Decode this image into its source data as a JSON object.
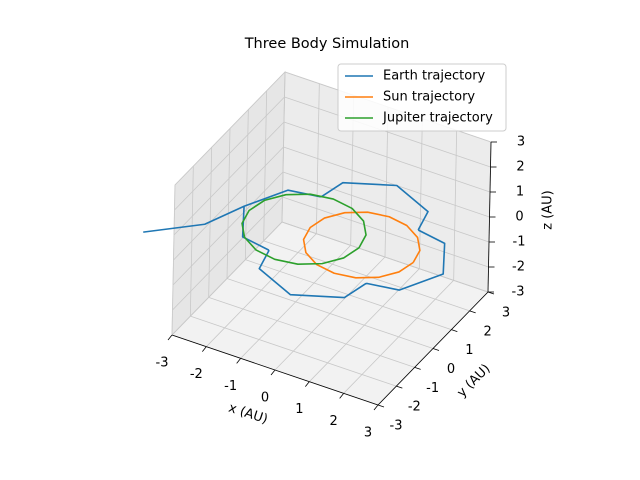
{
  "chart_data": {
    "type": "line3d",
    "title": "Three Body Simulation",
    "xlabel": "x (AU)",
    "ylabel": "y (AU)",
    "zlabel": "z (AU)",
    "xlim": [
      -3,
      3
    ],
    "ylim": [
      -3,
      3
    ],
    "zlim": [
      -3,
      3
    ],
    "xticks": [
      -3,
      -2,
      -1,
      0,
      1,
      2,
      3
    ],
    "yticks": [
      -3,
      -2,
      -1,
      0,
      1,
      2,
      3
    ],
    "zticks": [
      -3,
      -2,
      -1,
      0,
      1,
      2,
      3
    ],
    "grid": true,
    "legend": "upper right",
    "series": [
      {
        "name": "Earth trajectory",
        "color": "#1f77b4",
        "x": [
          -4.1,
          -3.0,
          -2.6,
          -1.98,
          -1.14,
          -1.11,
          -0.94,
          0.3,
          1.54,
          1.71,
          1.74,
          2.58,
          3.2,
          2.58,
          1.74,
          1.71,
          1.54,
          0.3,
          -0.94,
          -1.11,
          -1.14,
          -1.98,
          -2.6
        ],
        "y": [
          -2.6,
          -1.3,
          0.1,
          -1.14,
          -1.31,
          -1.34,
          -2.18,
          -2.8,
          -2.18,
          -1.34,
          -1.31,
          -1.14,
          0.1,
          1.34,
          1.51,
          1.54,
          2.38,
          3.0,
          2.38,
          1.54,
          1.51,
          1.34,
          0.1
        ],
        "z": [
          0.3,
          0.15,
          0,
          0,
          0,
          0,
          0,
          0,
          0,
          0,
          0,
          0,
          0,
          0,
          0,
          0,
          0,
          0,
          0,
          0,
          0,
          0,
          0
        ]
      },
      {
        "name": "Sun trajectory",
        "color": "#ff7f0e",
        "x": [
          2.3,
          2.19,
          1.86,
          1.37,
          0.8,
          0.23,
          -0.26,
          -0.59,
          -0.7,
          -0.59,
          -0.26,
          0.23,
          0.8,
          1.37,
          1.86,
          2.19,
          2.3
        ],
        "y": [
          0.15,
          0.72,
          1.21,
          1.54,
          1.65,
          1.54,
          1.21,
          0.72,
          0.15,
          -0.42,
          -0.91,
          -1.24,
          -1.35,
          -1.24,
          -0.91,
          -0.42,
          0.15
        ],
        "z": [
          0,
          0,
          0,
          0,
          0,
          0,
          0,
          0,
          0,
          0,
          0,
          0,
          0,
          0,
          0,
          0,
          0
        ]
      },
      {
        "name": "Jupiter trajectory",
        "color": "#2ca02c",
        "x": [
          0.8,
          0.68,
          0.33,
          -0.19,
          -0.8,
          -1.41,
          -1.93,
          -2.28,
          -2.4,
          -2.28,
          -1.93,
          -1.41,
          -0.8,
          -0.19,
          0.33,
          0.68,
          0.8
        ],
        "y": [
          0,
          0.61,
          1.13,
          1.48,
          1.6,
          1.48,
          1.13,
          0.61,
          0,
          -0.61,
          -1.13,
          -1.48,
          -1.6,
          -1.48,
          -1.13,
          -0.61,
          0
        ],
        "z": [
          0,
          0,
          0,
          0,
          0,
          0,
          0,
          0,
          0,
          0,
          0,
          0,
          0,
          0,
          0,
          0,
          0
        ]
      }
    ]
  }
}
